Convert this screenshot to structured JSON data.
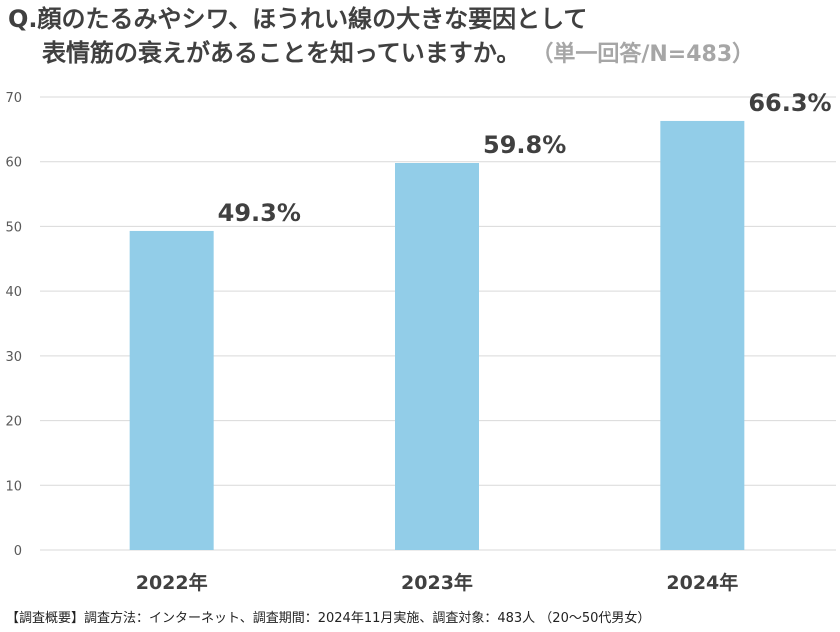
{
  "title": {
    "line1": "Q.顔のたるみやシワ、ほうれい線の大きな要因として",
    "line2": "表情筋の衰えがあることを知っていますか。",
    "subtitle": "（単一回答/N=483）"
  },
  "footnote": "【調査概要】調査方法：インターネット、調査期間：2024年11月実施、調査対象：483人 （20～50代男女）",
  "colors": {
    "bar": "#92cde8",
    "grid": "#d9d9d9",
    "axis_text": "#595959",
    "label_text": "#404040"
  },
  "chart_data": {
    "type": "bar",
    "categories": [
      "2022年",
      "2023年",
      "2024年"
    ],
    "values": [
      49.3,
      59.8,
      66.3
    ],
    "data_labels": [
      "49.3%",
      "59.8%",
      "66.3%"
    ],
    "ylim": [
      0,
      70
    ],
    "yticks": [
      0,
      10,
      20,
      30,
      40,
      50,
      60,
      70
    ],
    "grid": true,
    "xlabel": "",
    "ylabel": ""
  }
}
